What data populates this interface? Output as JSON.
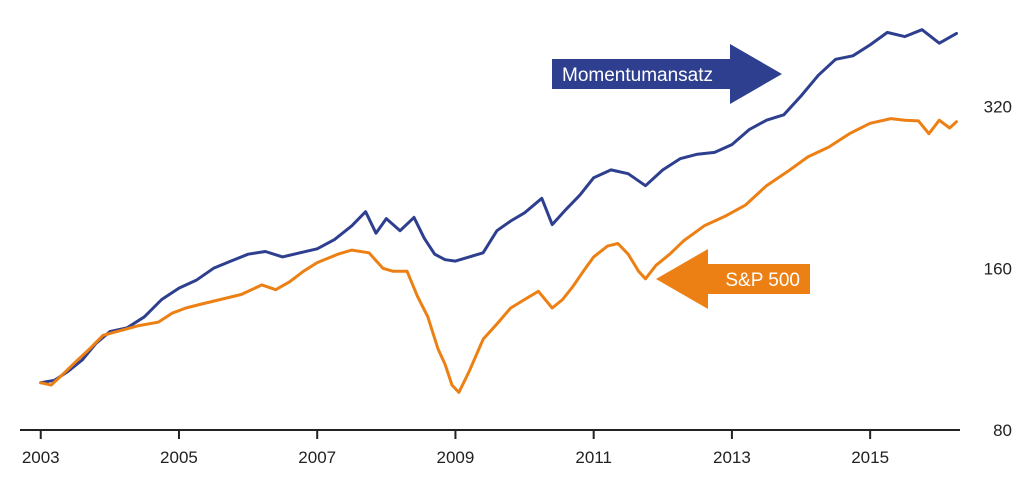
{
  "chart_data": {
    "type": "line",
    "title": "",
    "xlabel": "",
    "ylabel": "",
    "y_scale": "log",
    "xlim": [
      2002.7,
      2016.3
    ],
    "ylim": [
      80,
      460
    ],
    "grid": false,
    "legend": "none",
    "x_ticks": [
      2003,
      2005,
      2007,
      2009,
      2011,
      2013,
      2015
    ],
    "x_tick_labels": [
      "2003",
      "2005",
      "2007",
      "2009",
      "2011",
      "2013",
      "2015"
    ],
    "y_ticks": [
      80,
      160,
      320
    ],
    "y_tick_labels": [
      "80",
      "160",
      "320"
    ],
    "series": [
      {
        "name": "Momentumansatz",
        "color": "#2e3f8f",
        "x": [
          2003.0,
          2003.2,
          2003.4,
          2003.6,
          2003.8,
          2004.0,
          2004.25,
          2004.5,
          2004.75,
          2005.0,
          2005.25,
          2005.5,
          2005.75,
          2006.0,
          2006.25,
          2006.5,
          2006.75,
          2007.0,
          2007.25,
          2007.5,
          2007.7,
          2007.85,
          2008.0,
          2008.2,
          2008.4,
          2008.55,
          2008.7,
          2008.85,
          2009.0,
          2009.2,
          2009.4,
          2009.6,
          2009.8,
          2010.0,
          2010.25,
          2010.4,
          2010.6,
          2010.8,
          2011.0,
          2011.25,
          2011.5,
          2011.75,
          2012.0,
          2012.25,
          2012.5,
          2012.75,
          2013.0,
          2013.25,
          2013.5,
          2013.75,
          2014.0,
          2014.25,
          2014.5,
          2014.75,
          2015.0,
          2015.25,
          2015.5,
          2015.75,
          2016.0,
          2016.25
        ],
        "y": [
          98,
          99,
          103,
          108,
          116,
          122,
          124,
          130,
          140,
          147,
          152,
          160,
          165,
          170,
          172,
          168,
          171,
          174,
          181,
          192,
          204,
          186,
          198,
          188,
          199,
          182,
          170,
          166,
          165,
          168,
          171,
          188,
          196,
          203,
          216,
          193,
          206,
          219,
          236,
          244,
          240,
          228,
          244,
          256,
          261,
          263,
          272,
          290,
          302,
          309,
          335,
          366,
          392,
          398,
          417,
          440,
          432,
          445,
          420,
          438
        ]
      },
      {
        "name": "S&P 500",
        "color": "#ec8014",
        "x": [
          2003.0,
          2003.15,
          2003.3,
          2003.5,
          2003.7,
          2003.9,
          2004.1,
          2004.4,
          2004.7,
          2004.9,
          2005.1,
          2005.3,
          2005.6,
          2005.9,
          2006.2,
          2006.4,
          2006.6,
          2006.8,
          2007.0,
          2007.3,
          2007.5,
          2007.75,
          2007.95,
          2008.1,
          2008.3,
          2008.45,
          2008.6,
          2008.75,
          2008.85,
          2008.95,
          2009.05,
          2009.2,
          2009.4,
          2009.6,
          2009.8,
          2010.0,
          2010.2,
          2010.4,
          2010.55,
          2010.7,
          2010.85,
          2011.0,
          2011.2,
          2011.35,
          2011.5,
          2011.65,
          2011.75,
          2011.9,
          2012.1,
          2012.3,
          2012.6,
          2012.9,
          2013.2,
          2013.5,
          2013.8,
          2014.1,
          2014.4,
          2014.7,
          2015.0,
          2015.3,
          2015.5,
          2015.7,
          2015.85,
          2016.0,
          2016.15,
          2016.25
        ],
        "y": [
          98,
          97,
          101,
          107,
          113,
          120,
          122,
          125,
          127,
          132,
          135,
          137,
          140,
          143,
          149,
          146,
          151,
          158,
          164,
          170,
          173,
          171,
          160,
          158,
          158,
          142,
          130,
          113,
          106,
          97,
          94,
          103,
          118,
          126,
          135,
          140,
          145,
          135,
          140,
          148,
          158,
          168,
          176,
          178,
          170,
          158,
          153,
          162,
          170,
          180,
          192,
          200,
          210,
          228,
          242,
          258,
          269,
          285,
          298,
          304,
          302,
          301,
          285,
          302,
          292,
          300
        ]
      }
    ],
    "annotations": [
      {
        "text": "Momentumansatz",
        "series": "Momentumansatz",
        "direction": "right",
        "color": "#2e3f8f"
      },
      {
        "text": "S&P 500",
        "series": "S&P 500",
        "direction": "left",
        "color": "#ec8014"
      }
    ]
  }
}
